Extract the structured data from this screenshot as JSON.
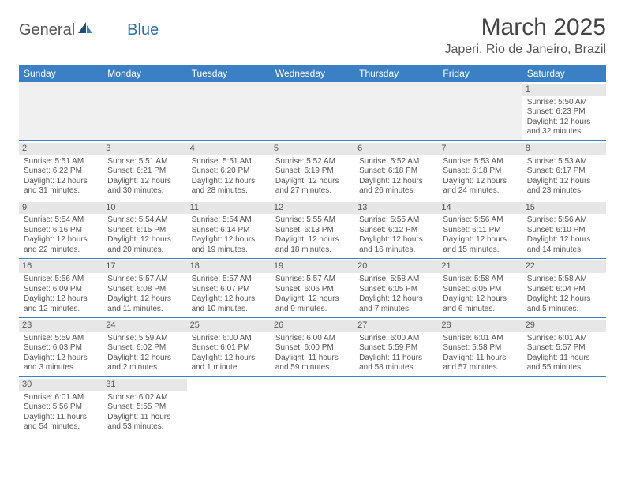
{
  "brand": {
    "general": "General",
    "blue": "Blue"
  },
  "title": "March 2025",
  "location": "Japeri, Rio de Janeiro, Brazil",
  "colors": {
    "header_bg": "#3b7fc4",
    "header_text": "#ffffff",
    "daynum_bg": "#e7e7e7",
    "empty_bg": "#f0f0f0",
    "text": "#555555",
    "border": "#3b7fc4"
  },
  "table": {
    "columns": [
      "Sunday",
      "Monday",
      "Tuesday",
      "Wednesday",
      "Thursday",
      "Friday",
      "Saturday"
    ],
    "weeks": [
      [
        null,
        null,
        null,
        null,
        null,
        null,
        {
          "n": "1",
          "sr": "Sunrise: 5:50 AM",
          "ss": "Sunset: 6:23 PM",
          "d1": "Daylight: 12 hours",
          "d2": "and 32 minutes."
        }
      ],
      [
        {
          "n": "2",
          "sr": "Sunrise: 5:51 AM",
          "ss": "Sunset: 6:22 PM",
          "d1": "Daylight: 12 hours",
          "d2": "and 31 minutes."
        },
        {
          "n": "3",
          "sr": "Sunrise: 5:51 AM",
          "ss": "Sunset: 6:21 PM",
          "d1": "Daylight: 12 hours",
          "d2": "and 30 minutes."
        },
        {
          "n": "4",
          "sr": "Sunrise: 5:51 AM",
          "ss": "Sunset: 6:20 PM",
          "d1": "Daylight: 12 hours",
          "d2": "and 28 minutes."
        },
        {
          "n": "5",
          "sr": "Sunrise: 5:52 AM",
          "ss": "Sunset: 6:19 PM",
          "d1": "Daylight: 12 hours",
          "d2": "and 27 minutes."
        },
        {
          "n": "6",
          "sr": "Sunrise: 5:52 AM",
          "ss": "Sunset: 6:18 PM",
          "d1": "Daylight: 12 hours",
          "d2": "and 26 minutes."
        },
        {
          "n": "7",
          "sr": "Sunrise: 5:53 AM",
          "ss": "Sunset: 6:18 PM",
          "d1": "Daylight: 12 hours",
          "d2": "and 24 minutes."
        },
        {
          "n": "8",
          "sr": "Sunrise: 5:53 AM",
          "ss": "Sunset: 6:17 PM",
          "d1": "Daylight: 12 hours",
          "d2": "and 23 minutes."
        }
      ],
      [
        {
          "n": "9",
          "sr": "Sunrise: 5:54 AM",
          "ss": "Sunset: 6:16 PM",
          "d1": "Daylight: 12 hours",
          "d2": "and 22 minutes."
        },
        {
          "n": "10",
          "sr": "Sunrise: 5:54 AM",
          "ss": "Sunset: 6:15 PM",
          "d1": "Daylight: 12 hours",
          "d2": "and 20 minutes."
        },
        {
          "n": "11",
          "sr": "Sunrise: 5:54 AM",
          "ss": "Sunset: 6:14 PM",
          "d1": "Daylight: 12 hours",
          "d2": "and 19 minutes."
        },
        {
          "n": "12",
          "sr": "Sunrise: 5:55 AM",
          "ss": "Sunset: 6:13 PM",
          "d1": "Daylight: 12 hours",
          "d2": "and 18 minutes."
        },
        {
          "n": "13",
          "sr": "Sunrise: 5:55 AM",
          "ss": "Sunset: 6:12 PM",
          "d1": "Daylight: 12 hours",
          "d2": "and 16 minutes."
        },
        {
          "n": "14",
          "sr": "Sunrise: 5:56 AM",
          "ss": "Sunset: 6:11 PM",
          "d1": "Daylight: 12 hours",
          "d2": "and 15 minutes."
        },
        {
          "n": "15",
          "sr": "Sunrise: 5:56 AM",
          "ss": "Sunset: 6:10 PM",
          "d1": "Daylight: 12 hours",
          "d2": "and 14 minutes."
        }
      ],
      [
        {
          "n": "16",
          "sr": "Sunrise: 5:56 AM",
          "ss": "Sunset: 6:09 PM",
          "d1": "Daylight: 12 hours",
          "d2": "and 12 minutes."
        },
        {
          "n": "17",
          "sr": "Sunrise: 5:57 AM",
          "ss": "Sunset: 6:08 PM",
          "d1": "Daylight: 12 hours",
          "d2": "and 11 minutes."
        },
        {
          "n": "18",
          "sr": "Sunrise: 5:57 AM",
          "ss": "Sunset: 6:07 PM",
          "d1": "Daylight: 12 hours",
          "d2": "and 10 minutes."
        },
        {
          "n": "19",
          "sr": "Sunrise: 5:57 AM",
          "ss": "Sunset: 6:06 PM",
          "d1": "Daylight: 12 hours",
          "d2": "and 9 minutes."
        },
        {
          "n": "20",
          "sr": "Sunrise: 5:58 AM",
          "ss": "Sunset: 6:05 PM",
          "d1": "Daylight: 12 hours",
          "d2": "and 7 minutes."
        },
        {
          "n": "21",
          "sr": "Sunrise: 5:58 AM",
          "ss": "Sunset: 6:05 PM",
          "d1": "Daylight: 12 hours",
          "d2": "and 6 minutes."
        },
        {
          "n": "22",
          "sr": "Sunrise: 5:58 AM",
          "ss": "Sunset: 6:04 PM",
          "d1": "Daylight: 12 hours",
          "d2": "and 5 minutes."
        }
      ],
      [
        {
          "n": "23",
          "sr": "Sunrise: 5:59 AM",
          "ss": "Sunset: 6:03 PM",
          "d1": "Daylight: 12 hours",
          "d2": "and 3 minutes."
        },
        {
          "n": "24",
          "sr": "Sunrise: 5:59 AM",
          "ss": "Sunset: 6:02 PM",
          "d1": "Daylight: 12 hours",
          "d2": "and 2 minutes."
        },
        {
          "n": "25",
          "sr": "Sunrise: 6:00 AM",
          "ss": "Sunset: 6:01 PM",
          "d1": "Daylight: 12 hours",
          "d2": "and 1 minute."
        },
        {
          "n": "26",
          "sr": "Sunrise: 6:00 AM",
          "ss": "Sunset: 6:00 PM",
          "d1": "Daylight: 11 hours",
          "d2": "and 59 minutes."
        },
        {
          "n": "27",
          "sr": "Sunrise: 6:00 AM",
          "ss": "Sunset: 5:59 PM",
          "d1": "Daylight: 11 hours",
          "d2": "and 58 minutes."
        },
        {
          "n": "28",
          "sr": "Sunrise: 6:01 AM",
          "ss": "Sunset: 5:58 PM",
          "d1": "Daylight: 11 hours",
          "d2": "and 57 minutes."
        },
        {
          "n": "29",
          "sr": "Sunrise: 6:01 AM",
          "ss": "Sunset: 5:57 PM",
          "d1": "Daylight: 11 hours",
          "d2": "and 55 minutes."
        }
      ],
      [
        {
          "n": "30",
          "sr": "Sunrise: 6:01 AM",
          "ss": "Sunset: 5:56 PM",
          "d1": "Daylight: 11 hours",
          "d2": "and 54 minutes."
        },
        {
          "n": "31",
          "sr": "Sunrise: 6:02 AM",
          "ss": "Sunset: 5:55 PM",
          "d1": "Daylight: 11 hours",
          "d2": "and 53 minutes."
        },
        null,
        null,
        null,
        null,
        null
      ]
    ]
  }
}
